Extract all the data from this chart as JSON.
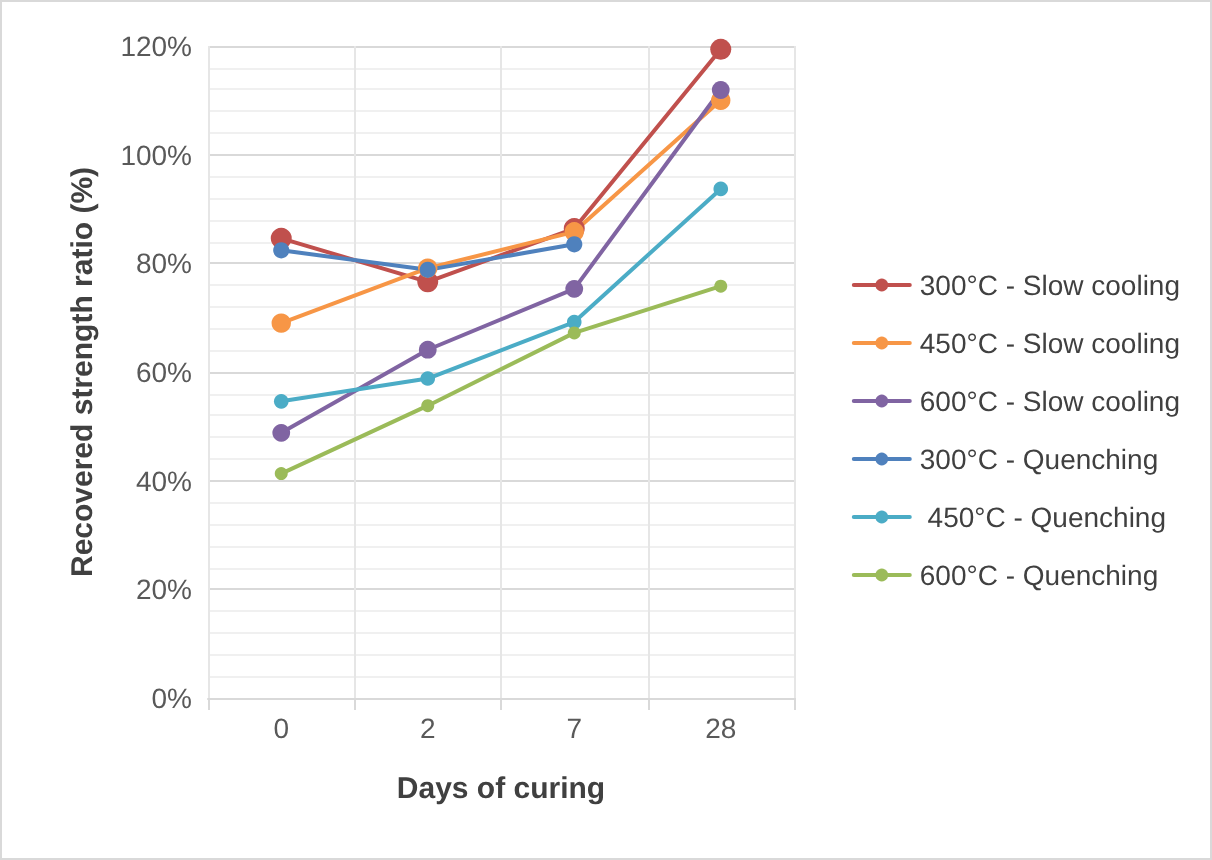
{
  "chart_data": {
    "type": "line",
    "xlabel": "Days of curing",
    "ylabel": "Recovered strength ratio (%)",
    "categories": [
      "0",
      "2",
      "7",
      "28"
    ],
    "series": [
      {
        "name": "300°C - Slow cooling",
        "color": "#c0504d",
        "values": [
          84.6,
          76.6,
          86.4,
          119.4
        ]
      },
      {
        "name": "450°C - Slow cooling",
        "color": "#f79646",
        "values": [
          69,
          79.1,
          85.8,
          110
        ]
      },
      {
        "name": "600°C - Slow cooling",
        "color": "#8064a2",
        "values": [
          48.8,
          64.1,
          75.3,
          111.9
        ]
      },
      {
        "name": "300°C - Quenching",
        "color": "#4f81bd",
        "values": [
          82.4,
          78.8,
          83.5,
          null
        ]
      },
      {
        "name": " 450°C - Quenching",
        "color": "#4bacc6",
        "values": [
          54.6,
          58.8,
          69.2,
          93.7
        ]
      },
      {
        "name": "600°C - Quenching",
        "color": "#9bbb59",
        "values": [
          41.3,
          53.8,
          67.2,
          75.8
        ]
      }
    ],
    "ylim": [
      0,
      120
    ],
    "yticks": [
      {
        "value": 0,
        "label": "0%"
      },
      {
        "value": 20,
        "label": "20%"
      },
      {
        "value": 40,
        "label": "40%"
      },
      {
        "value": 60,
        "label": "60%"
      },
      {
        "value": 80,
        "label": "80%"
      },
      {
        "value": 100,
        "label": "100%"
      },
      {
        "value": 120,
        "label": "120%"
      }
    ],
    "grid": true,
    "legend": "right",
    "marker": "circle",
    "line_style": "solid"
  }
}
